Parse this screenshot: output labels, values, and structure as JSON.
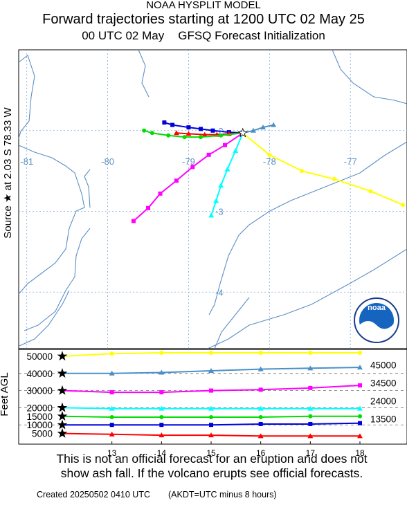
{
  "header": {
    "model": "NOAA HYSPLIT MODEL",
    "title": "Forward trajectories starting at 1200 UTC 02 May 25",
    "init_time": "00 UTC 02 May",
    "init_model": "GFSQ  Forecast Initialization"
  },
  "map": {
    "source_label": "Source ★ at 2.03 S  78.33 W",
    "lon_labels": [
      "-81",
      "-80",
      "-79",
      "-78",
      "-77"
    ],
    "lat_labels": [
      "-2",
      "-3",
      "-4"
    ],
    "logo_text": "noaa"
  },
  "height_panel": {
    "ylabel": "Feet AGL",
    "left_ticks": [
      "50000",
      "40000",
      "30000",
      "20000",
      "15000",
      "10000",
      "5000"
    ],
    "right_labels": [
      "45000",
      "34500",
      "24000",
      "13500"
    ],
    "x_ticks": [
      "13",
      "14",
      "15",
      "16",
      "17",
      "18"
    ]
  },
  "disclaimer": {
    "line1": "This is not an official forecast for an eruption and does not",
    "line2": "show ash fall. If the volcano erupts see official forecasts."
  },
  "footer": {
    "created": "Created 20250502 0410 UTC",
    "note": "(AKDT=UTC minus 8 hours)"
  },
  "chart_data": [
    {
      "type": "line",
      "panel": "map",
      "xlabel": "longitude",
      "ylabel": "latitude",
      "xlim": [
        -81.1,
        -76.3
      ],
      "ylim": [
        -4.7,
        -1.0
      ],
      "grid": true,
      "source": {
        "lon": -78.33,
        "lat": -2.03
      },
      "series": [
        {
          "color": "#0000dd",
          "marker": "square",
          "points": [
            [
              -78.33,
              -2.03
            ],
            [
              -78.5,
              -2.02
            ],
            [
              -78.7,
              -2.0
            ],
            [
              -78.85,
              -1.98
            ],
            [
              -79.0,
              -1.96
            ],
            [
              -79.2,
              -1.93
            ],
            [
              -79.3,
              -1.9
            ]
          ]
        },
        {
          "color": "#ff0000",
          "marker": "triangle",
          "points": [
            [
              -78.33,
              -2.03
            ],
            [
              -78.5,
              -2.04
            ],
            [
              -78.65,
              -2.05
            ],
            [
              -78.8,
              -2.05
            ],
            [
              -79.0,
              -2.04
            ],
            [
              -79.15,
              -2.03
            ]
          ]
        },
        {
          "color": "#00dd00",
          "marker": "circle",
          "points": [
            [
              -78.33,
              -2.03
            ],
            [
              -78.6,
              -2.06
            ],
            [
              -78.85,
              -2.08
            ],
            [
              -79.05,
              -2.08
            ],
            [
              -79.25,
              -2.06
            ],
            [
              -79.45,
              -2.03
            ],
            [
              -79.55,
              -2.0
            ]
          ]
        },
        {
          "color": "#ff00ff",
          "marker": "square",
          "points": [
            [
              -78.33,
              -2.03
            ],
            [
              -78.55,
              -2.18
            ],
            [
              -78.75,
              -2.3
            ],
            [
              -78.95,
              -2.45
            ],
            [
              -79.15,
              -2.62
            ],
            [
              -79.35,
              -2.78
            ],
            [
              -79.5,
              -2.96
            ],
            [
              -79.68,
              -3.12
            ]
          ]
        },
        {
          "color": "#00ffff",
          "marker": "triangle",
          "points": [
            [
              -78.33,
              -2.03
            ],
            [
              -78.42,
              -2.25
            ],
            [
              -78.52,
              -2.48
            ],
            [
              -78.6,
              -2.68
            ],
            [
              -78.66,
              -2.87
            ],
            [
              -78.72,
              -3.05
            ]
          ]
        },
        {
          "color": "#4a90c8",
          "marker": "triangle",
          "points": [
            [
              -78.33,
              -2.03
            ],
            [
              -78.2,
              -2.0
            ],
            [
              -78.08,
              -1.96
            ],
            [
              -77.95,
              -1.93
            ]
          ]
        },
        {
          "color": "#ffff00",
          "marker": "circle",
          "points": [
            [
              -78.33,
              -2.03
            ],
            [
              -78.0,
              -2.3
            ],
            [
              -77.6,
              -2.5
            ],
            [
              -77.2,
              -2.6
            ],
            [
              -76.75,
              -2.75
            ],
            [
              -76.35,
              -2.92
            ]
          ]
        }
      ]
    },
    {
      "type": "line",
      "panel": "height",
      "xlabel": "",
      "ylabel": "Feet AGL",
      "xlim": [
        12,
        18.6
      ],
      "ylim": [
        0,
        52000
      ],
      "x": [
        12,
        13,
        14,
        15,
        16,
        17,
        18
      ],
      "series": [
        {
          "color": "#ffff00",
          "marker": "circle",
          "values": [
            50000,
            51500,
            52000,
            52000,
            52000,
            52000,
            52000
          ]
        },
        {
          "color": "#4a90c8",
          "marker": "triangle",
          "values": [
            40000,
            40000,
            40500,
            41500,
            42500,
            43000,
            43500
          ]
        },
        {
          "color": "#ff00ff",
          "marker": "square",
          "values": [
            30000,
            29000,
            29000,
            30000,
            30500,
            31500,
            33000
          ]
        },
        {
          "color": "#00ffff",
          "marker": "triangle",
          "values": [
            20000,
            19500,
            19500,
            19500,
            19500,
            19500,
            19500
          ]
        },
        {
          "color": "#00dd00",
          "marker": "circle",
          "values": [
            15000,
            14500,
            14500,
            14500,
            14500,
            15000,
            15000
          ]
        },
        {
          "color": "#0000dd",
          "marker": "square",
          "values": [
            10000,
            10000,
            10000,
            10000,
            10500,
            10500,
            11000
          ]
        },
        {
          "color": "#ff0000",
          "marker": "triangle",
          "values": [
            5000,
            4500,
            4000,
            4000,
            3500,
            3500,
            3500
          ]
        }
      ]
    }
  ]
}
